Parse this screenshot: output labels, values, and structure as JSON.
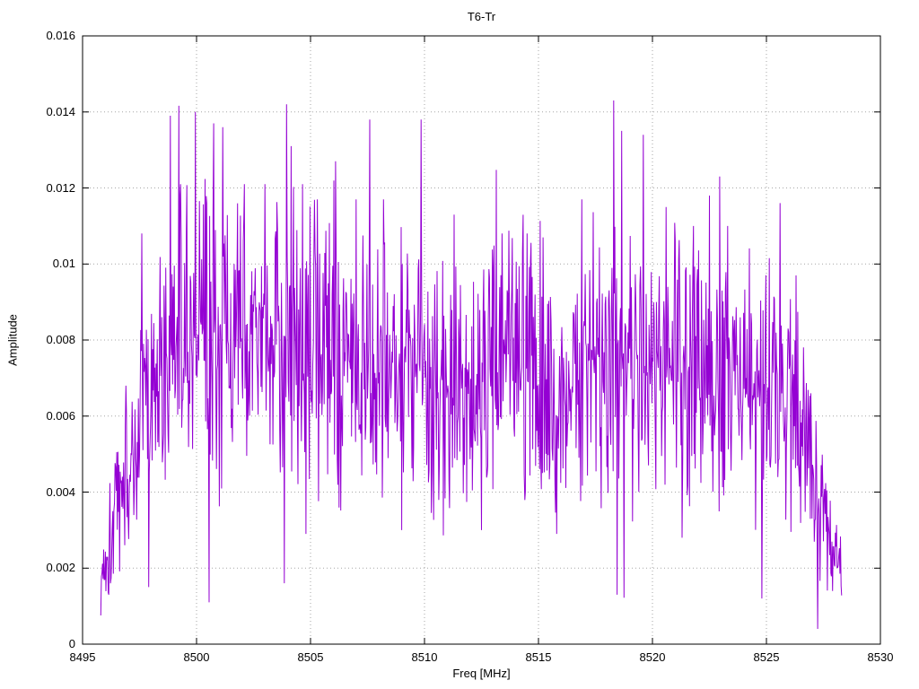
{
  "figure": {
    "background": "#ffffff",
    "text_color": "#000000"
  },
  "chart_data": {
    "type": "line",
    "title": "T6-Tr",
    "xlabel": "Freq [MHz]",
    "ylabel": "Amplitude",
    "xlim": [
      8495,
      8530
    ],
    "ylim": [
      0,
      0.016
    ],
    "grid": true,
    "legend": "none",
    "grid_color": "#a6a6a6",
    "border_color": "#000000",
    "xticks": {
      "values": [
        8495,
        8500,
        8505,
        8510,
        8515,
        8520,
        8525,
        8530
      ],
      "labels": [
        "8495",
        "8500",
        "8505",
        "8510",
        "8515",
        "8520",
        "8525",
        "8530"
      ]
    },
    "yticks": {
      "values": [
        0,
        0.002,
        0.004,
        0.006,
        0.008,
        0.01,
        0.012,
        0.014,
        0.016
      ],
      "labels": [
        "0",
        "0.002",
        "0.004",
        "0.006",
        "0.008",
        "0.01",
        "0.012",
        "0.014",
        "0.016"
      ]
    },
    "series": [
      {
        "name": "T6-Tr spectrum",
        "color": "#9400D3",
        "style": "noisy band-limited spectrum, dense vertical jitter",
        "x_start": 8495.8,
        "x_end": 8528.3,
        "x_step": 0.025,
        "seed": 1337,
        "noise_amp": 0.0045,
        "envelope": {
          "freq": [
            8495.8,
            8496.3,
            8496.6,
            8497.0,
            8497.5,
            8498.0,
            8498.5,
            8499.0,
            8500.0,
            8501.0,
            8502.0,
            8503.0,
            8504.0,
            8505.0,
            8506.0,
            8507.0,
            8508.0,
            8509.0,
            8510.0,
            8511.0,
            8512.0,
            8513.0,
            8514.0,
            8515.0,
            8516.0,
            8517.0,
            8518.0,
            8519.0,
            8520.0,
            8521.0,
            8522.0,
            8523.0,
            8524.0,
            8525.0,
            8525.5,
            8526.0,
            8526.5,
            8527.0,
            8527.3,
            8527.6,
            8528.3
          ],
          "mean": [
            0.0016,
            0.0032,
            0.004,
            0.0044,
            0.0056,
            0.0068,
            0.0076,
            0.008,
            0.0081,
            0.0079,
            0.0078,
            0.008,
            0.0081,
            0.0078,
            0.0079,
            0.0076,
            0.0075,
            0.0074,
            0.0073,
            0.0071,
            0.007,
            0.0073,
            0.0075,
            0.0074,
            0.0072,
            0.0074,
            0.0077,
            0.0076,
            0.0075,
            0.0075,
            0.0073,
            0.0074,
            0.007,
            0.0066,
            0.0068,
            0.0064,
            0.006,
            0.005,
            0.004,
            0.003,
            0.002
          ]
        },
        "peaks": [
          [
            8496.9,
            0.0068
          ],
          [
            8497.6,
            0.0108
          ],
          [
            8498.85,
            0.0139
          ],
          [
            8499.3,
            0.0121
          ],
          [
            8499.95,
            0.014
          ],
          [
            8500.45,
            0.0116
          ],
          [
            8500.75,
            0.0137
          ],
          [
            8501.15,
            0.0136
          ],
          [
            8502.1,
            0.0121
          ],
          [
            8503.0,
            0.0121
          ],
          [
            8503.95,
            0.0142
          ],
          [
            8504.15,
            0.0131
          ],
          [
            8505.3,
            0.0117
          ],
          [
            8506.1,
            0.0127
          ],
          [
            8507.0,
            0.0117
          ],
          [
            8507.6,
            0.0138
          ],
          [
            8508.2,
            0.0117
          ],
          [
            8509.85,
            0.0138
          ],
          [
            8511.3,
            0.0113
          ],
          [
            8513.4,
            0.0108
          ],
          [
            8514.5,
            0.0108
          ],
          [
            8515.2,
            0.0107
          ],
          [
            8516.9,
            0.0117
          ],
          [
            8518.3,
            0.0143
          ],
          [
            8518.65,
            0.0135
          ],
          [
            8519.6,
            0.0134
          ],
          [
            8520.6,
            0.0115
          ],
          [
            8521.8,
            0.011
          ],
          [
            8522.5,
            0.0118
          ],
          [
            8522.95,
            0.0123
          ],
          [
            8523.3,
            0.011
          ],
          [
            8525.6,
            0.0116
          ],
          [
            8526.3,
            0.0097
          ]
        ],
        "dips": [
          [
            8496.15,
            0.0013
          ],
          [
            8497.9,
            0.0015
          ],
          [
            8500.55,
            0.0011
          ],
          [
            8504.8,
            0.0029
          ],
          [
            8509.0,
            0.003
          ],
          [
            8512.5,
            0.003
          ],
          [
            8515.8,
            0.0029
          ],
          [
            8518.45,
            0.0013
          ],
          [
            8521.3,
            0.0028
          ],
          [
            8524.8,
            0.0012
          ],
          [
            8527.25,
            0.0004
          ],
          [
            8527.9,
            0.0014
          ]
        ]
      }
    ]
  }
}
